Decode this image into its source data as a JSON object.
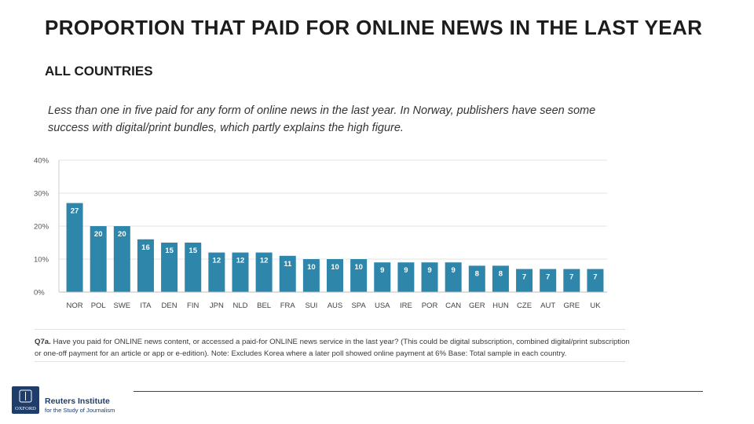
{
  "header": {
    "title": "PROPORTION THAT PAID FOR ONLINE NEWS IN THE LAST YEAR",
    "subtitle": "ALL COUNTRIES",
    "description": "Less than one in five paid for any form of online news in the last year. In Norway, publishers have seen some success with digital/print bundles, which partly explains the high figure."
  },
  "chart_data": {
    "type": "bar",
    "categories": [
      "NOR",
      "POL",
      "SWE",
      "ITA",
      "DEN",
      "FIN",
      "JPN",
      "NLD",
      "BEL",
      "FRA",
      "SUI",
      "AUS",
      "SPA",
      "USA",
      "IRE",
      "POR",
      "CAN",
      "GER",
      "HUN",
      "CZE",
      "AUT",
      "GRE",
      "UK"
    ],
    "values": [
      27,
      20,
      20,
      16,
      15,
      15,
      12,
      12,
      12,
      11,
      10,
      10,
      10,
      9,
      9,
      9,
      9,
      8,
      8,
      7,
      7,
      7,
      7
    ],
    "y_ticks": [
      "0%",
      "10%",
      "20%",
      "30%",
      "40%"
    ],
    "ylim": [
      0,
      40
    ],
    "grid": true,
    "bar_color": "#2e86ab",
    "label_color": "#ffffff"
  },
  "footnote": {
    "question_id": "Q7a.",
    "text": "Have you paid for ONLINE news content, or accessed a paid-for ONLINE news service in the last year? (This could be digital subscription, combined digital/print subscription or one-off payment for an article or app or e-edition). Note: Excludes Korea where a later poll showed online payment at 6% Base: Total sample in each country."
  },
  "logo": {
    "name": "Reuters Institute",
    "tagline": "for the Study of Journalism",
    "crest_text": "OXFORD"
  }
}
